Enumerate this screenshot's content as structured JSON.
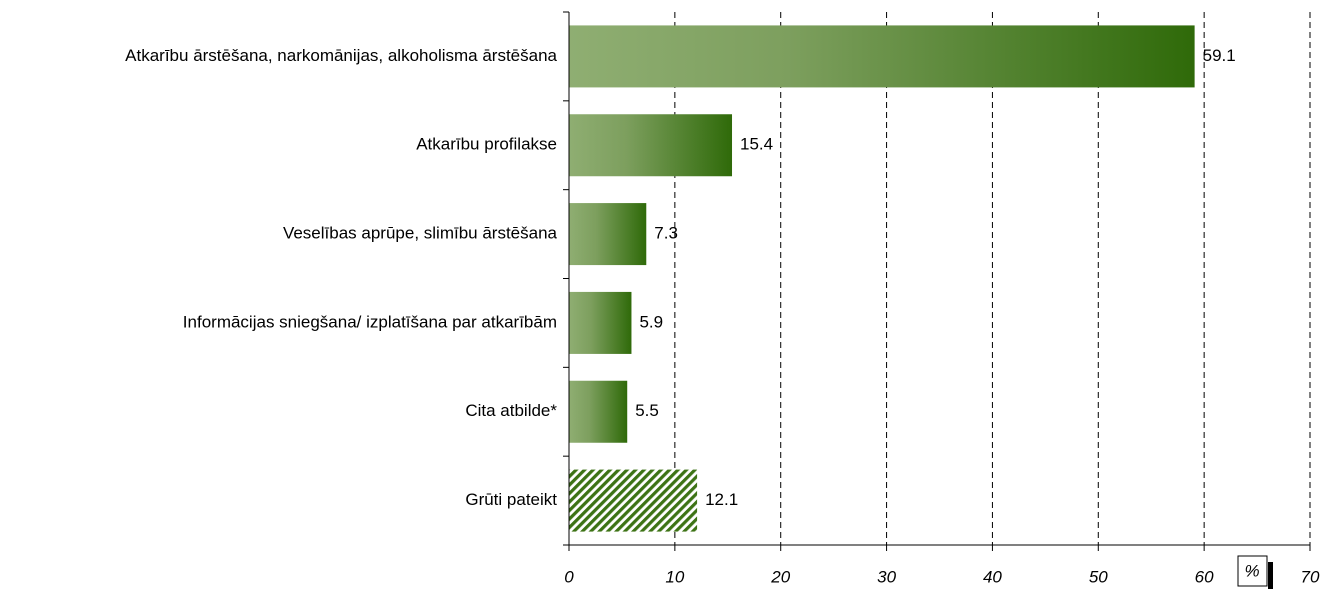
{
  "chart_data": {
    "type": "barh",
    "categories": [
      "Atkarību ārstēšana, narkomānijas, alkoholisma ārstēšana",
      "Atkarību profilakse",
      "Veselības aprūpe, slimību ārstēšana",
      "Informācijas sniegšana/ izplatīšana par atkarībām",
      "Cita atbilde*",
      "Grūti pateikt"
    ],
    "values": [
      59.1,
      15.4,
      7.3,
      5.9,
      5.5,
      12.1
    ],
    "color": "#2f6a09",
    "patterns": [
      "gradient",
      "gradient",
      "gradient",
      "gradient",
      "gradient",
      "hatch"
    ],
    "x_label": "%",
    "xlim": [
      0,
      70
    ],
    "xticks": [
      0,
      10,
      20,
      30,
      40,
      50,
      60,
      70
    ],
    "grid": true
  }
}
